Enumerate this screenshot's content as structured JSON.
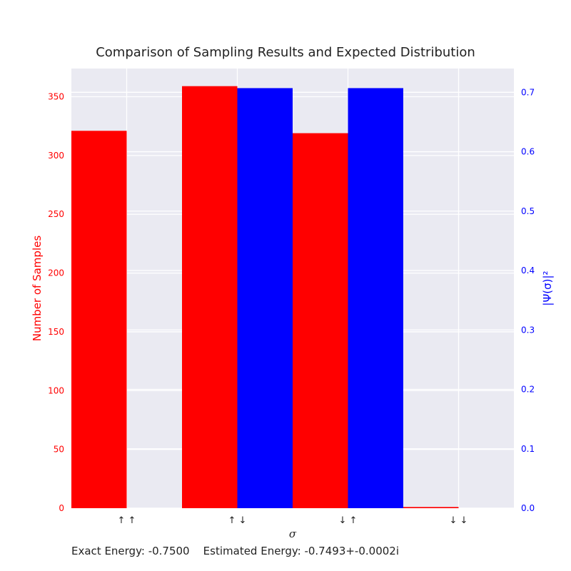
{
  "chart_data": {
    "type": "bar",
    "title": "Comparison of Sampling Results and Expected Distribution",
    "xlabel": "σ",
    "ylabel_left": "Number of Samples",
    "ylabel_right": "|Ψ(σ)|²",
    "categories": [
      "↑ ↑",
      "↑ ↓",
      "↓ ↑",
      "↓ ↓"
    ],
    "series": [
      {
        "name": "Number of Samples",
        "axis": "left",
        "color": "#ff0000",
        "values": [
          321,
          359,
          319,
          1
        ]
      },
      {
        "name": "|Ψ(σ)|²",
        "axis": "right",
        "color": "#0000ff",
        "values": [
          0.0,
          0.707,
          0.707,
          0.0
        ]
      }
    ],
    "ylim_left": [
      0,
      374
    ],
    "ylim_right": [
      0,
      0.74
    ],
    "yticks_left": [
      0,
      50,
      100,
      150,
      200,
      250,
      300,
      350
    ],
    "yticks_right": [
      0.0,
      0.1,
      0.2,
      0.3,
      0.4,
      0.5,
      0.6,
      0.7
    ],
    "yticks_right_labels": [
      "0.0",
      "0.1",
      "0.2",
      "0.3",
      "0.4",
      "0.5",
      "0.6",
      "0.7"
    ],
    "grid": true,
    "background": "#eaeaf2",
    "footer": {
      "exact": "Exact Energy: -0.7500",
      "estimated": "Estimated Energy: -0.7493+-0.0002i"
    }
  }
}
